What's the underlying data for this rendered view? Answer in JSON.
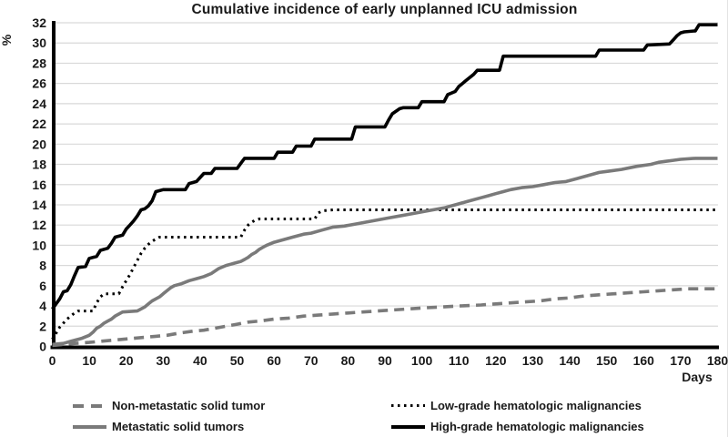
{
  "figure": {
    "title": "Cumulative incidence of early unplanned ICU admission",
    "y_axis_label": "%",
    "x_axis_label": "Days"
  },
  "chart_data": {
    "type": "line",
    "title": "Cumulative incidence of early unplanned ICU admission",
    "xlabel": "Days",
    "ylabel": "%",
    "xlim": [
      0,
      180
    ],
    "ylim": [
      0,
      32
    ],
    "x_ticks": [
      0,
      10,
      20,
      30,
      40,
      50,
      60,
      70,
      80,
      90,
      100,
      110,
      120,
      130,
      140,
      150,
      160,
      170,
      180
    ],
    "y_ticks": [
      0,
      2,
      4,
      6,
      8,
      10,
      12,
      14,
      16,
      18,
      20,
      22,
      24,
      26,
      28,
      30,
      32
    ],
    "grid": "horizontal",
    "legend_position": "bottom",
    "colors": {
      "gridline": "#d9d9d9",
      "axis": "#000000",
      "solid_tumor_gray": "#7a7a7a",
      "hematologic_black": "#000000"
    },
    "series": [
      {
        "name": "Non-metastatic solid tumor",
        "style": "dashed",
        "color": "#7a7a7a",
        "points": [
          [
            0,
            0.1
          ],
          [
            3,
            0.2
          ],
          [
            6,
            0.3
          ],
          [
            10,
            0.4
          ],
          [
            13,
            0.5
          ],
          [
            16,
            0.6
          ],
          [
            19,
            0.7
          ],
          [
            22,
            0.8
          ],
          [
            25,
            0.9
          ],
          [
            28,
            1.0
          ],
          [
            31,
            1.1
          ],
          [
            34,
            1.3
          ],
          [
            38,
            1.5
          ],
          [
            41,
            1.6
          ],
          [
            44,
            1.8
          ],
          [
            47,
            2.0
          ],
          [
            50,
            2.2
          ],
          [
            53,
            2.4
          ],
          [
            56,
            2.5
          ],
          [
            60,
            2.7
          ],
          [
            64,
            2.8
          ],
          [
            68,
            3.0
          ],
          [
            72,
            3.1
          ],
          [
            76,
            3.2
          ],
          [
            80,
            3.3
          ],
          [
            84,
            3.4
          ],
          [
            88,
            3.5
          ],
          [
            92,
            3.6
          ],
          [
            96,
            3.7
          ],
          [
            100,
            3.8
          ],
          [
            105,
            3.9
          ],
          [
            110,
            4.0
          ],
          [
            116,
            4.1
          ],
          [
            120,
            4.2
          ],
          [
            124,
            4.3
          ],
          [
            128,
            4.4
          ],
          [
            132,
            4.5
          ],
          [
            136,
            4.7
          ],
          [
            140,
            4.8
          ],
          [
            144,
            5.0
          ],
          [
            148,
            5.1
          ],
          [
            152,
            5.2
          ],
          [
            156,
            5.3
          ],
          [
            160,
            5.4
          ],
          [
            164,
            5.5
          ],
          [
            168,
            5.6
          ],
          [
            172,
            5.7
          ],
          [
            180,
            5.7
          ]
        ]
      },
      {
        "name": "Metastatic solid tumors",
        "style": "solid",
        "color": "#7a7a7a",
        "points": [
          [
            0,
            0.2
          ],
          [
            3,
            0.3
          ],
          [
            5,
            0.5
          ],
          [
            6,
            0.6
          ],
          [
            8,
            0.8
          ],
          [
            10,
            1.1
          ],
          [
            11,
            1.4
          ],
          [
            12,
            1.8
          ],
          [
            13,
            2.0
          ],
          [
            14,
            2.3
          ],
          [
            15,
            2.5
          ],
          [
            16,
            2.7
          ],
          [
            17,
            3.0
          ],
          [
            18,
            3.2
          ],
          [
            19,
            3.4
          ],
          [
            23,
            3.5
          ],
          [
            25,
            3.9
          ],
          [
            26,
            4.2
          ],
          [
            27,
            4.5
          ],
          [
            28,
            4.7
          ],
          [
            29,
            4.9
          ],
          [
            30,
            5.2
          ],
          [
            31,
            5.5
          ],
          [
            32,
            5.8
          ],
          [
            33,
            6.0
          ],
          [
            35,
            6.2
          ],
          [
            37,
            6.5
          ],
          [
            39,
            6.7
          ],
          [
            41,
            6.9
          ],
          [
            43,
            7.2
          ],
          [
            45,
            7.7
          ],
          [
            47,
            8.0
          ],
          [
            49,
            8.2
          ],
          [
            51,
            8.4
          ],
          [
            52,
            8.6
          ],
          [
            53,
            8.8
          ],
          [
            54,
            9.1
          ],
          [
            55,
            9.3
          ],
          [
            56,
            9.6
          ],
          [
            57,
            9.8
          ],
          [
            58,
            10.0
          ],
          [
            60,
            10.3
          ],
          [
            62,
            10.5
          ],
          [
            65,
            10.8
          ],
          [
            68,
            11.1
          ],
          [
            70,
            11.2
          ],
          [
            73,
            11.5
          ],
          [
            76,
            11.8
          ],
          [
            79,
            11.9
          ],
          [
            82,
            12.1
          ],
          [
            85,
            12.3
          ],
          [
            88,
            12.5
          ],
          [
            91,
            12.7
          ],
          [
            94,
            12.9
          ],
          [
            97,
            13.1
          ],
          [
            100,
            13.3
          ],
          [
            103,
            13.5
          ],
          [
            106,
            13.7
          ],
          [
            108,
            13.9
          ],
          [
            110,
            14.1
          ],
          [
            112,
            14.3
          ],
          [
            114,
            14.5
          ],
          [
            116,
            14.7
          ],
          [
            118,
            14.9
          ],
          [
            120,
            15.1
          ],
          [
            122,
            15.3
          ],
          [
            124,
            15.5
          ],
          [
            127,
            15.7
          ],
          [
            130,
            15.8
          ],
          [
            133,
            16.0
          ],
          [
            136,
            16.2
          ],
          [
            139,
            16.3
          ],
          [
            142,
            16.6
          ],
          [
            145,
            16.9
          ],
          [
            148,
            17.2
          ],
          [
            150,
            17.3
          ],
          [
            154,
            17.5
          ],
          [
            158,
            17.8
          ],
          [
            162,
            18.0
          ],
          [
            164,
            18.2
          ],
          [
            166,
            18.3
          ],
          [
            168,
            18.4
          ],
          [
            170,
            18.5
          ],
          [
            174,
            18.6
          ],
          [
            180,
            18.6
          ]
        ]
      },
      {
        "name": "Low-grade hematologic malignancies",
        "style": "dotted",
        "color": "#000000",
        "points": [
          [
            0,
            0.7
          ],
          [
            1,
            1.3
          ],
          [
            2,
            1.9
          ],
          [
            3,
            2.3
          ],
          [
            4,
            2.7
          ],
          [
            5,
            3.0
          ],
          [
            6,
            3.3
          ],
          [
            7,
            3.5
          ],
          [
            11,
            3.5
          ],
          [
            12,
            4.3
          ],
          [
            13,
            4.9
          ],
          [
            14,
            5.2
          ],
          [
            18,
            5.2
          ],
          [
            19,
            5.9
          ],
          [
            20,
            6.5
          ],
          [
            21,
            7.1
          ],
          [
            22,
            7.8
          ],
          [
            23,
            8.5
          ],
          [
            24,
            9.2
          ],
          [
            25,
            9.7
          ],
          [
            26,
            10.1
          ],
          [
            27,
            10.4
          ],
          [
            28,
            10.6
          ],
          [
            29,
            10.8
          ],
          [
            51,
            10.8
          ],
          [
            52,
            11.5
          ],
          [
            53,
            12.0
          ],
          [
            54,
            12.3
          ],
          [
            55,
            12.5
          ],
          [
            56,
            12.6
          ],
          [
            71,
            12.6
          ],
          [
            72,
            13.2
          ],
          [
            73,
            13.4
          ],
          [
            76,
            13.5
          ],
          [
            180,
            13.5
          ]
        ]
      },
      {
        "name": "High-grade hematologic malignancies",
        "style": "solid",
        "color": "#000000",
        "points": [
          [
            0,
            3.7
          ],
          [
            1,
            4.2
          ],
          [
            2,
            4.7
          ],
          [
            3,
            5.4
          ],
          [
            4,
            5.5
          ],
          [
            5,
            6.1
          ],
          [
            6,
            7.0
          ],
          [
            7,
            7.8
          ],
          [
            9,
            7.9
          ],
          [
            10,
            8.7
          ],
          [
            12,
            8.9
          ],
          [
            13,
            9.5
          ],
          [
            15,
            9.7
          ],
          [
            16,
            10.2
          ],
          [
            17,
            10.8
          ],
          [
            19,
            11.0
          ],
          [
            20,
            11.6
          ],
          [
            21,
            12.0
          ],
          [
            22,
            12.4
          ],
          [
            23,
            12.9
          ],
          [
            24,
            13.5
          ],
          [
            25,
            13.6
          ],
          [
            26,
            13.9
          ],
          [
            27,
            14.4
          ],
          [
            28,
            15.3
          ],
          [
            30,
            15.5
          ],
          [
            36,
            15.5
          ],
          [
            37,
            16.1
          ],
          [
            39,
            16.3
          ],
          [
            40,
            16.7
          ],
          [
            41,
            17.1
          ],
          [
            43,
            17.1
          ],
          [
            44,
            17.6
          ],
          [
            50,
            17.6
          ],
          [
            51,
            18.1
          ],
          [
            52,
            18.6
          ],
          [
            60,
            18.6
          ],
          [
            61,
            19.2
          ],
          [
            65,
            19.2
          ],
          [
            66,
            19.8
          ],
          [
            70,
            19.8
          ],
          [
            71,
            20.5
          ],
          [
            81,
            20.5
          ],
          [
            82,
            21.7
          ],
          [
            90,
            21.7
          ],
          [
            91,
            22.4
          ],
          [
            92,
            23.0
          ],
          [
            94,
            23.5
          ],
          [
            95,
            23.6
          ],
          [
            99,
            23.6
          ],
          [
            100,
            24.2
          ],
          [
            106,
            24.2
          ],
          [
            107,
            24.9
          ],
          [
            109,
            25.2
          ],
          [
            110,
            25.7
          ],
          [
            112,
            26.3
          ],
          [
            114,
            26.9
          ],
          [
            115,
            27.3
          ],
          [
            121,
            27.3
          ],
          [
            122,
            28.7
          ],
          [
            147,
            28.7
          ],
          [
            148,
            29.3
          ],
          [
            160,
            29.3
          ],
          [
            161,
            29.8
          ],
          [
            167,
            29.9
          ],
          [
            168,
            30.3
          ],
          [
            169,
            30.7
          ],
          [
            170,
            31.0
          ],
          [
            171,
            31.1
          ],
          [
            174,
            31.2
          ],
          [
            175,
            31.8
          ],
          [
            180,
            31.8
          ]
        ]
      }
    ]
  }
}
